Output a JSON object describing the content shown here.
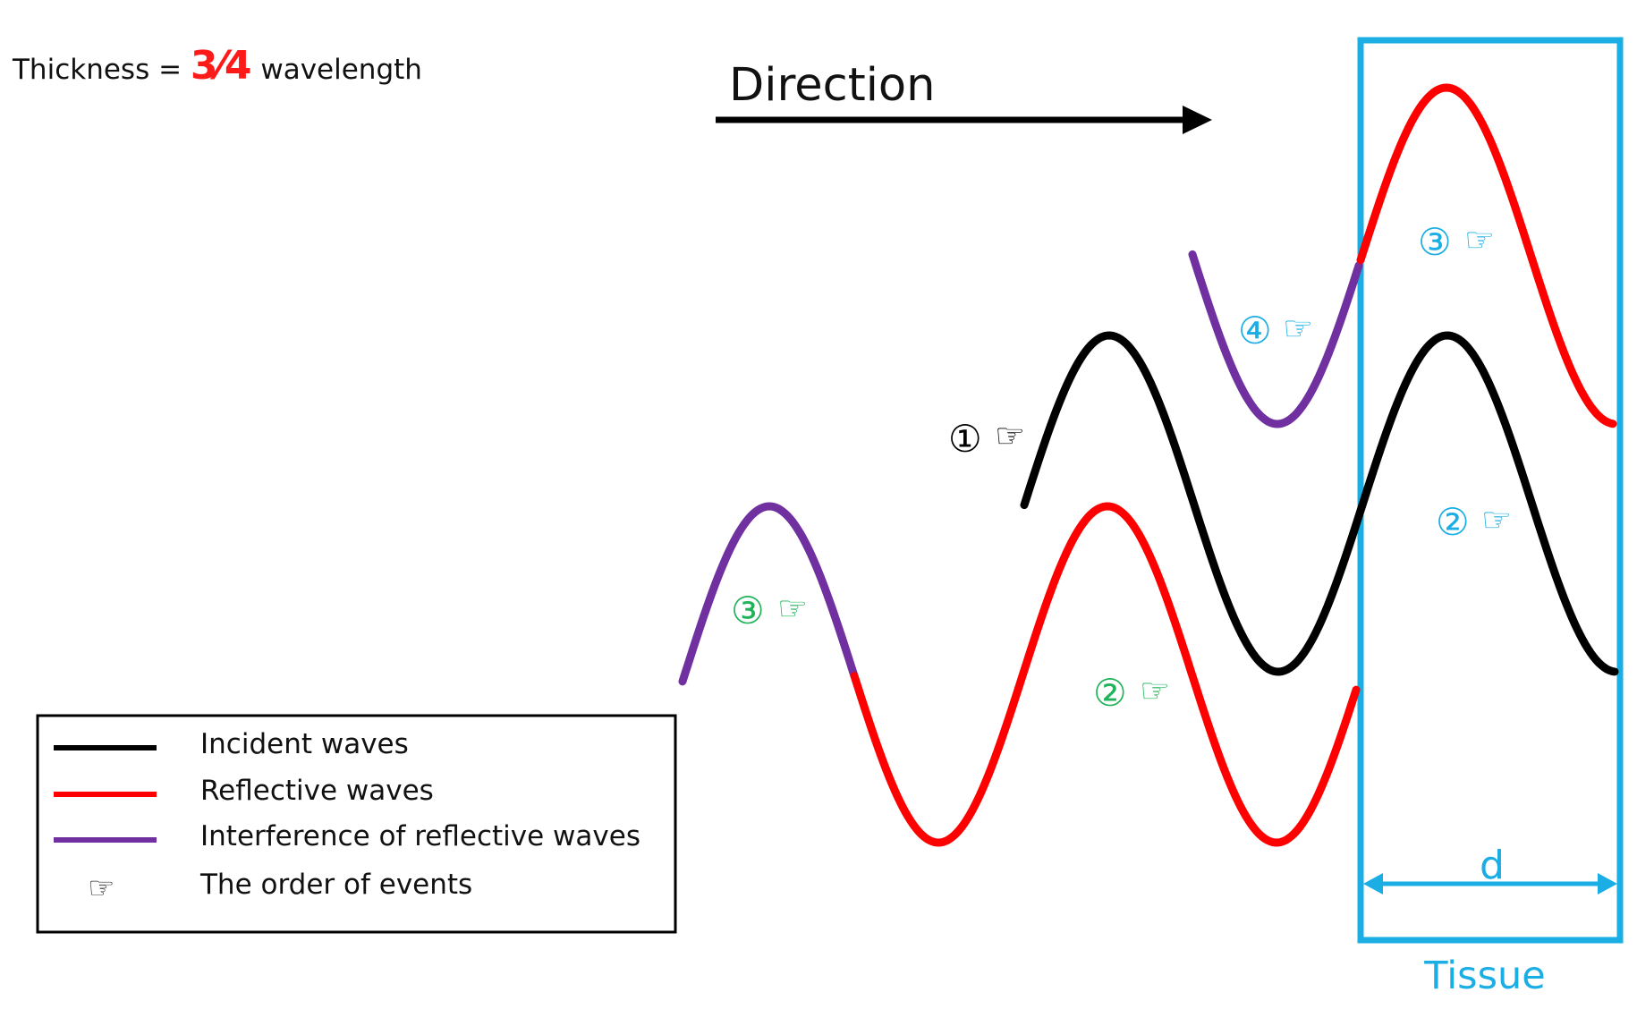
{
  "thickness": {
    "prefix": "Thickness = ",
    "fraction": "3⁄4",
    "suffix": " wavelength",
    "fraction_color": "#ff1a1a"
  },
  "direction_label": "Direction",
  "tissue": {
    "label": "Tissue",
    "dimension_label": "d",
    "color": "#1aaee5"
  },
  "waves": {
    "incident_color": "#000000",
    "reflective_color": "#ff0000",
    "interference_color": "#7030a0"
  },
  "markers": {
    "m1": "①",
    "m2_left": "②",
    "m3_left": "③",
    "m4": "④",
    "m3_tissue": "③",
    "m2_tissue": "②",
    "hand_icon": "☞",
    "black_color": "#000000",
    "green_color": "#21b35a",
    "blue_color": "#1aaee5"
  },
  "legend": {
    "items": [
      {
        "label": "Incident waves",
        "color": "#000000"
      },
      {
        "label": "Reflective waves",
        "color": "#ff0000"
      },
      {
        "label": "Interference of reflective waves",
        "color": "#7030a0"
      },
      {
        "label": "The order of events",
        "icon": "hand-pointing-icon"
      }
    ],
    "hand_glyph": "☞"
  }
}
